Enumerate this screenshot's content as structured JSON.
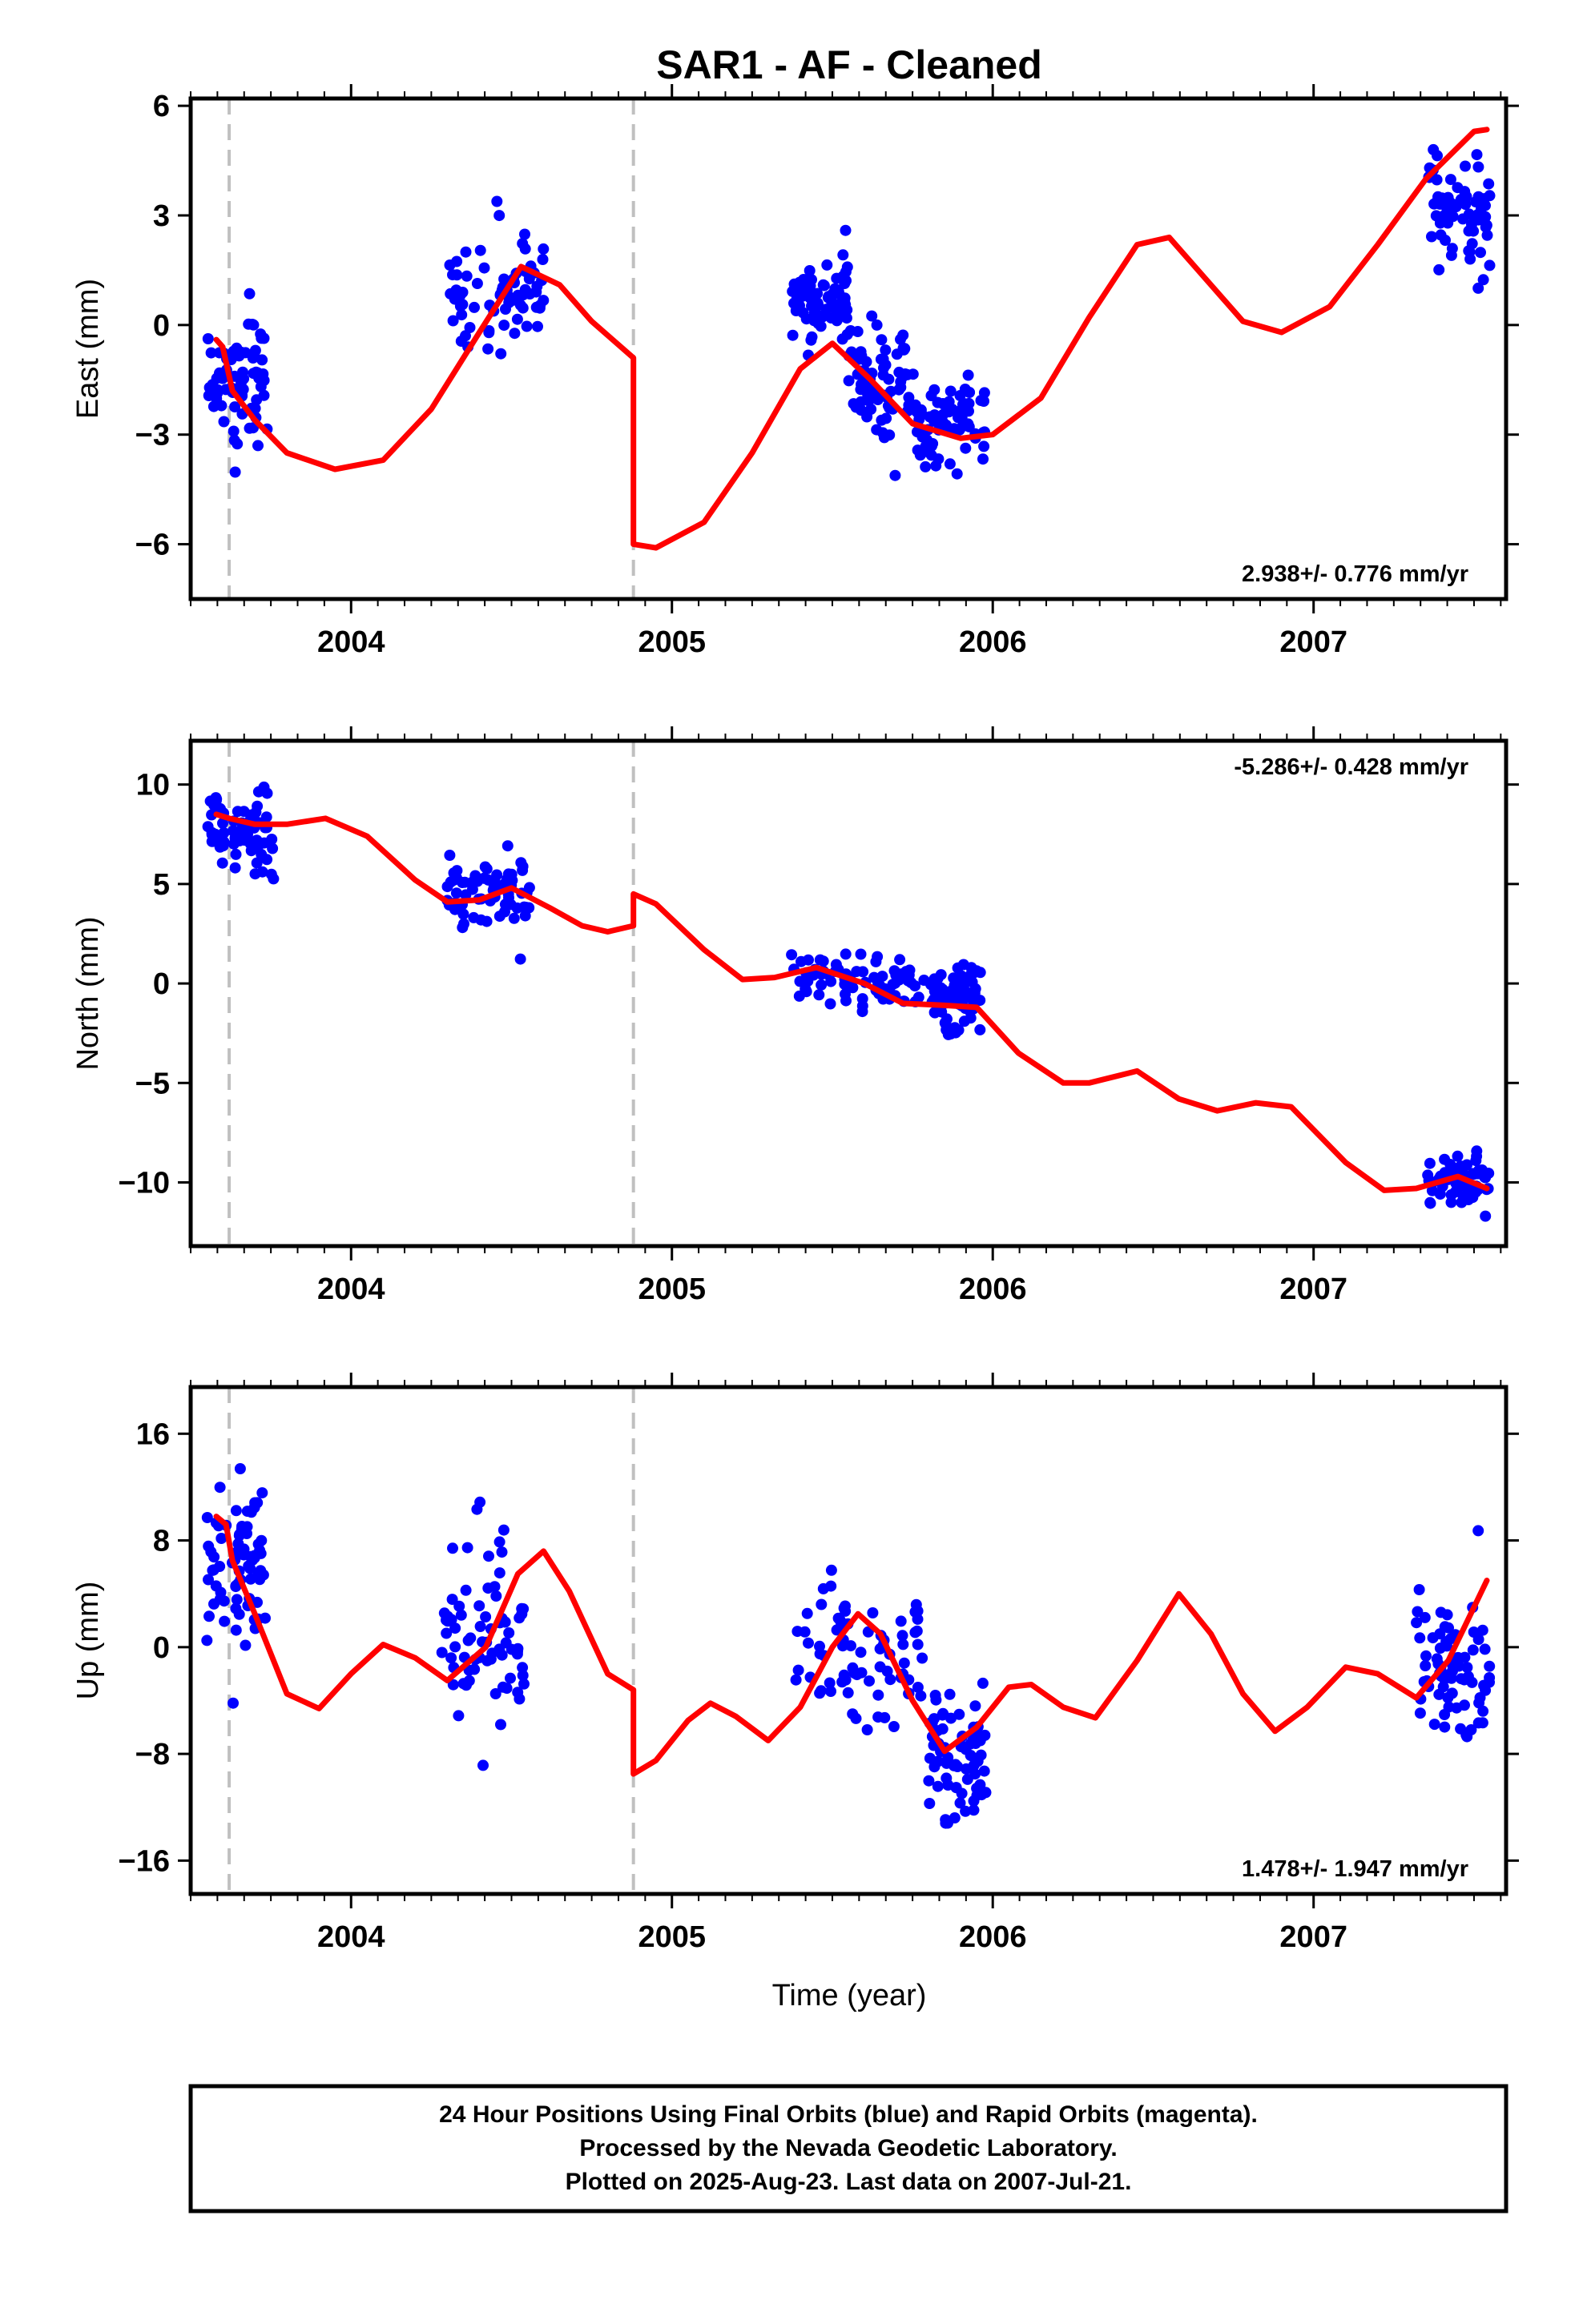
{
  "chart_data": {
    "type": "scatter",
    "title": "SAR1  - AF - Cleaned",
    "xlabel": "Time (year)",
    "x_ticks": [
      "2004",
      "2005",
      "2006",
      "2007"
    ],
    "xlim": [
      2003.5,
      2007.6
    ],
    "event_lines_x": [
      2003.62,
      2004.88
    ],
    "colors": {
      "points": "#0000ff",
      "model": "#ff0000",
      "event_line": "#c0c0c0",
      "frame": "#000000"
    },
    "panels": [
      {
        "id": "east",
        "ylabel": "East (mm)",
        "ylim": [
          -7.5,
          6.2
        ],
        "yticks": [
          -6,
          -3,
          0,
          3,
          6
        ],
        "rate_text": "2.938+/- 0.776 mm/yr",
        "rate_position": "bottom-right",
        "clusters": [
          {
            "x": [
              2003.55,
              2003.74
            ],
            "y_center": -1.6,
            "spread": 1.6
          },
          {
            "x": [
              2004.3,
              2004.6
            ],
            "y_center": 0.8,
            "spread": 1.6
          },
          {
            "x": [
              2005.37,
              2005.55
            ],
            "y_center": 0.7,
            "spread": 1.0
          },
          {
            "x": [
              2005.55,
              2005.75
            ],
            "y_center": -1.6,
            "spread": 1.5
          },
          {
            "x": [
              2005.75,
              2005.98
            ],
            "y_center": -2.8,
            "spread": 1.4
          },
          {
            "x": [
              2007.35,
              2007.55
            ],
            "y_center": 3.1,
            "spread": 1.3
          }
        ],
        "model": [
          [
            2003.58,
            -0.4
          ],
          [
            2003.6,
            -0.6
          ],
          [
            2003.63,
            -1.8
          ],
          [
            2003.7,
            -2.6
          ],
          [
            2003.8,
            -3.5
          ],
          [
            2003.95,
            -3.95
          ],
          [
            2004.1,
            -3.7
          ],
          [
            2004.25,
            -2.3
          ],
          [
            2004.4,
            -0.2
          ],
          [
            2004.53,
            1.6
          ],
          [
            2004.65,
            1.1
          ],
          [
            2004.75,
            0.1
          ],
          [
            2004.88,
            -0.9
          ],
          [
            2004.88,
            -6.0
          ],
          [
            2004.95,
            -6.1
          ],
          [
            2005.1,
            -5.4
          ],
          [
            2005.25,
            -3.5
          ],
          [
            2005.4,
            -1.2
          ],
          [
            2005.5,
            -0.5
          ],
          [
            2005.62,
            -1.5
          ],
          [
            2005.75,
            -2.7
          ],
          [
            2005.9,
            -3.1
          ],
          [
            2006.0,
            -3.0
          ],
          [
            2006.15,
            -2.0
          ],
          [
            2006.3,
            0.2
          ],
          [
            2006.45,
            2.2
          ],
          [
            2006.55,
            2.4
          ],
          [
            2006.65,
            1.4
          ],
          [
            2006.78,
            0.1
          ],
          [
            2006.9,
            -0.2
          ],
          [
            2007.05,
            0.5
          ],
          [
            2007.2,
            2.2
          ],
          [
            2007.35,
            4.0
          ],
          [
            2007.5,
            5.3
          ],
          [
            2007.54,
            5.35
          ]
        ]
      },
      {
        "id": "north",
        "ylabel": "North (mm)",
        "ylim": [
          -13.2,
          12.2
        ],
        "yticks": [
          -10,
          -5,
          0,
          5,
          10
        ],
        "rate_text": "-5.286+/- 0.428 mm/yr",
        "rate_position": "top-right",
        "clusters": [
          {
            "x": [
              2003.55,
              2003.76
            ],
            "y_center": 7.6,
            "spread": 1.8
          },
          {
            "x": [
              2004.3,
              2004.56
            ],
            "y_center": 4.6,
            "spread": 1.6
          },
          {
            "x": [
              2005.37,
              2005.8
            ],
            "y_center": 0.0,
            "spread": 1.3
          },
          {
            "x": [
              2005.8,
              2005.97
            ],
            "y_center": -0.8,
            "spread": 1.8
          },
          {
            "x": [
              2007.35,
              2007.55
            ],
            "y_center": -10.0,
            "spread": 1.3
          }
        ],
        "model": [
          [
            2003.58,
            8.5
          ],
          [
            2003.62,
            8.3
          ],
          [
            2003.7,
            8.0
          ],
          [
            2003.8,
            8.0
          ],
          [
            2003.92,
            8.3
          ],
          [
            2004.05,
            7.4
          ],
          [
            2004.2,
            5.2
          ],
          [
            2004.3,
            4.1
          ],
          [
            2004.4,
            4.2
          ],
          [
            2004.5,
            4.8
          ],
          [
            2004.62,
            3.8
          ],
          [
            2004.72,
            2.9
          ],
          [
            2004.8,
            2.6
          ],
          [
            2004.88,
            2.9
          ],
          [
            2004.88,
            4.5
          ],
          [
            2004.95,
            4.0
          ],
          [
            2005.1,
            1.7
          ],
          [
            2005.22,
            0.2
          ],
          [
            2005.32,
            0.3
          ],
          [
            2005.45,
            0.8
          ],
          [
            2005.6,
            0.0
          ],
          [
            2005.72,
            -1.0
          ],
          [
            2005.85,
            -1.1
          ],
          [
            2005.95,
            -1.2
          ],
          [
            2006.08,
            -3.5
          ],
          [
            2006.22,
            -5.0
          ],
          [
            2006.3,
            -5.0
          ],
          [
            2006.45,
            -4.4
          ],
          [
            2006.58,
            -5.8
          ],
          [
            2006.7,
            -6.4
          ],
          [
            2006.82,
            -6.0
          ],
          [
            2006.93,
            -6.2
          ],
          [
            2007.1,
            -9.0
          ],
          [
            2007.22,
            -10.4
          ],
          [
            2007.32,
            -10.3
          ],
          [
            2007.45,
            -9.7
          ],
          [
            2007.54,
            -10.3
          ]
        ]
      },
      {
        "id": "up",
        "ylabel": "Up (mm)",
        "ylim": [
          -18.5,
          19.5
        ],
        "yticks": [
          -16,
          -8,
          0,
          8,
          16
        ],
        "rate_text": "1.478+/- 1.947 mm/yr",
        "rate_position": "bottom-right",
        "clusters": [
          {
            "x": [
              2003.55,
              2003.74
            ],
            "y_center": 6.5,
            "spread": 5.5
          },
          {
            "x": [
              2004.28,
              2004.55
            ],
            "y_center": 1.0,
            "spread": 7.0
          },
          {
            "x": [
              2005.38,
              2005.8
            ],
            "y_center": -0.5,
            "spread": 5.0
          },
          {
            "x": [
              2005.8,
              2005.98
            ],
            "y_center": -8.0,
            "spread": 5.0
          },
          {
            "x": [
              2007.32,
              2007.55
            ],
            "y_center": -1.5,
            "spread": 5.0
          }
        ],
        "model": [
          [
            2003.58,
            9.8
          ],
          [
            2003.61,
            9.2
          ],
          [
            2003.63,
            6.5
          ],
          [
            2003.7,
            2.5
          ],
          [
            2003.8,
            -3.5
          ],
          [
            2003.9,
            -4.6
          ],
          [
            2004.0,
            -2.0
          ],
          [
            2004.1,
            0.2
          ],
          [
            2004.2,
            -0.8
          ],
          [
            2004.3,
            -2.5
          ],
          [
            2004.42,
            0.0
          ],
          [
            2004.52,
            5.5
          ],
          [
            2004.6,
            7.2
          ],
          [
            2004.68,
            4.2
          ],
          [
            2004.8,
            -2.0
          ],
          [
            2004.88,
            -3.2
          ],
          [
            2004.88,
            -9.5
          ],
          [
            2004.95,
            -8.5
          ],
          [
            2005.05,
            -5.5
          ],
          [
            2005.12,
            -4.2
          ],
          [
            2005.2,
            -5.2
          ],
          [
            2005.3,
            -7.0
          ],
          [
            2005.4,
            -4.5
          ],
          [
            2005.5,
            0.0
          ],
          [
            2005.58,
            2.5
          ],
          [
            2005.65,
            1.0
          ],
          [
            2005.75,
            -4.0
          ],
          [
            2005.85,
            -7.8
          ],
          [
            2005.95,
            -6.0
          ],
          [
            2006.05,
            -3.0
          ],
          [
            2006.12,
            -2.8
          ],
          [
            2006.22,
            -4.5
          ],
          [
            2006.32,
            -5.3
          ],
          [
            2006.45,
            -1.0
          ],
          [
            2006.58,
            4.0
          ],
          [
            2006.68,
            1.0
          ],
          [
            2006.78,
            -3.5
          ],
          [
            2006.88,
            -6.3
          ],
          [
            2006.98,
            -4.5
          ],
          [
            2007.1,
            -1.5
          ],
          [
            2007.2,
            -2.0
          ],
          [
            2007.32,
            -3.8
          ],
          [
            2007.42,
            -1.0
          ],
          [
            2007.54,
            5.0
          ]
        ]
      }
    ]
  },
  "footer": {
    "lines": [
      "24 Hour Positions Using Final Orbits (blue) and Rapid Orbits (magenta).",
      "Processed by the Nevada Geodetic Laboratory.",
      "Plotted on 2025-Aug-23. Last data on 2007-Jul-21."
    ]
  }
}
